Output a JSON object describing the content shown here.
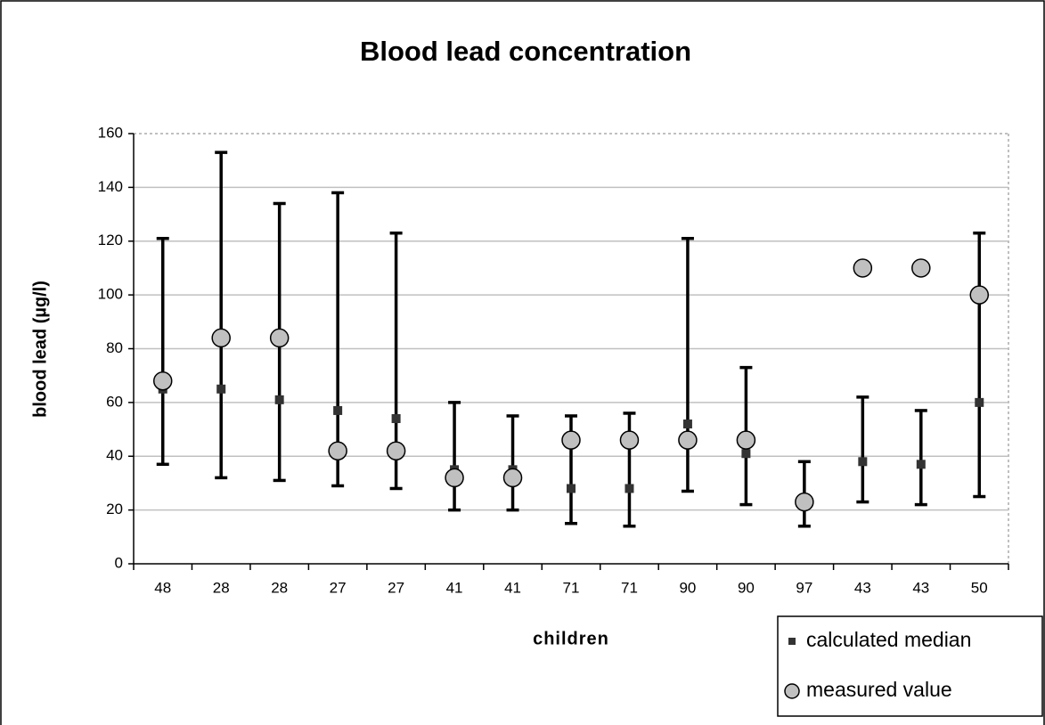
{
  "chart_data": {
    "type": "errorbar",
    "title": "Blood lead concentration",
    "x_label": "children",
    "y_label": "blood lead (µg/l)",
    "categories": [
      "48",
      "28",
      "28",
      "27",
      "27",
      "41",
      "41",
      "71",
      "71",
      "90",
      "90",
      "97",
      "43",
      "43",
      "50"
    ],
    "series": [
      {
        "name": "calculated median",
        "color": "#333333",
        "marker": "square",
        "values": [
          65,
          65,
          61,
          57,
          54,
          35,
          35,
          28,
          28,
          52,
          41,
          23,
          38,
          37,
          60
        ],
        "lower": [
          37,
          32,
          31,
          29,
          28,
          20,
          20,
          15,
          14,
          27,
          22,
          14,
          23,
          22,
          25
        ],
        "upper": [
          121,
          153,
          134,
          138,
          123,
          60,
          55,
          55,
          56,
          121,
          73,
          38,
          62,
          57,
          123
        ]
      },
      {
        "name": "measured value",
        "color": "#c0c0c0",
        "marker": "circle",
        "values": [
          68,
          84,
          84,
          42,
          42,
          32,
          32,
          46,
          46,
          46,
          46,
          23,
          110,
          110,
          100
        ]
      }
    ],
    "ylim": [
      0,
      160
    ],
    "yticks": [
      0,
      20,
      40,
      60,
      80,
      100,
      120,
      140,
      160
    ],
    "grid": true,
    "legend": "lower-right"
  }
}
